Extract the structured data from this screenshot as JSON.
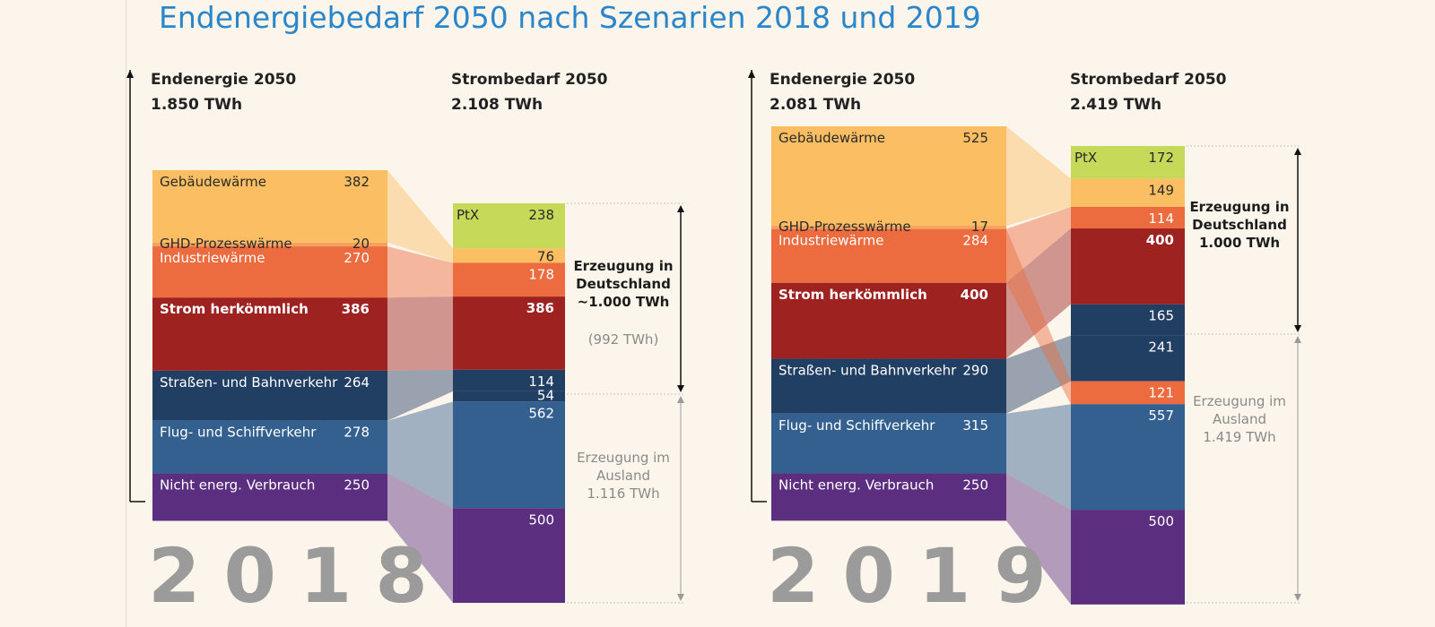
{
  "title": "Endenergiebedarf 2050 nach Szenarien 2018 und 2019",
  "colors": {
    "gebaeude": "#fbbe63",
    "ghd": "#f4a25c",
    "industrie": "#ec6c3f",
    "strom": "#9d2220",
    "verkehr": "#213e63",
    "flug": "#34608f",
    "nicht": "#5b2e80",
    "ptx": "#c7d959"
  },
  "chart_data": [
    {
      "type": "flow",
      "year": "2018",
      "left": {
        "title": "Endenergie 2050",
        "total": "1.850 TWh",
        "segments": [
          {
            "key": "gebaeude",
            "name": "Gebäudewärme",
            "value": 382
          },
          {
            "key": "ghd",
            "name": "GHD-Prozesswärme",
            "value": 20
          },
          {
            "key": "industrie",
            "name": "Industriewärme",
            "value": 270
          },
          {
            "key": "strom",
            "name": "Strom herkömmlich",
            "value": 386
          },
          {
            "key": "verkehr",
            "name": "Straßen- und Bahnverkehr",
            "value": 264
          },
          {
            "key": "flug",
            "name": "Flug- und Schiffverkehr",
            "value": 278
          },
          {
            "key": "nicht",
            "name": "Nicht energ. Verbrauch",
            "value": 250
          }
        ]
      },
      "right": {
        "title": "Strombedarf 2050",
        "total": "2.108 TWh",
        "segments": [
          {
            "key": "ptx",
            "label": "PtX",
            "value": 238
          },
          {
            "key": "gebaeude",
            "value": 76
          },
          {
            "key": "industrie",
            "value": 178
          },
          {
            "key": "strom",
            "value": 386
          },
          {
            "key": "verkehr",
            "value": 114
          },
          {
            "key": "verkehr",
            "value": 54
          },
          {
            "key": "flug",
            "value": 562
          },
          {
            "key": "nicht",
            "value": 500
          }
        ]
      },
      "annotations": {
        "domestic": [
          "Erzeugung in",
          "Deutschland",
          "~1.000 TWh"
        ],
        "domestic_note": "(992 TWh)",
        "abroad": [
          "Erzeugung im",
          "Ausland",
          "1.116 TWh"
        ]
      }
    },
    {
      "type": "flow",
      "year": "2019",
      "left": {
        "title": "Endenergie 2050",
        "total": "2.081 TWh",
        "segments": [
          {
            "key": "gebaeude",
            "name": "Gebäudewärme",
            "value": 525
          },
          {
            "key": "ghd",
            "name": "GHD-Prozesswärme",
            "value": 17
          },
          {
            "key": "industrie",
            "name": "Industriewärme",
            "value": 284
          },
          {
            "key": "strom",
            "name": "Strom herkömmlich",
            "value": 400
          },
          {
            "key": "verkehr",
            "name": "Straßen- und Bahnverkehr",
            "value": 290
          },
          {
            "key": "flug",
            "name": "Flug- und Schiffverkehr",
            "value": 315
          },
          {
            "key": "nicht",
            "name": "Nicht energ. Verbrauch",
            "value": 250
          }
        ]
      },
      "right": {
        "title": "Strombedarf 2050",
        "total": "2.419 TWh",
        "segments": [
          {
            "key": "ptx",
            "label": "PtX",
            "value": 172
          },
          {
            "key": "gebaeude",
            "value": 149
          },
          {
            "key": "industrie",
            "value": 114
          },
          {
            "key": "strom",
            "value": 400
          },
          {
            "key": "verkehr",
            "value": 165
          },
          {
            "key": "verkehr",
            "value": 241
          },
          {
            "key": "industrie",
            "value": 121
          },
          {
            "key": "flug",
            "value": 557
          },
          {
            "key": "nicht",
            "value": 500
          }
        ]
      },
      "annotations": {
        "domestic": [
          "Erzeugung in",
          "Deutschland",
          "1.000 TWh"
        ],
        "abroad": [
          "Erzeugung im",
          "Ausland",
          "1.419 TWh"
        ]
      }
    }
  ]
}
